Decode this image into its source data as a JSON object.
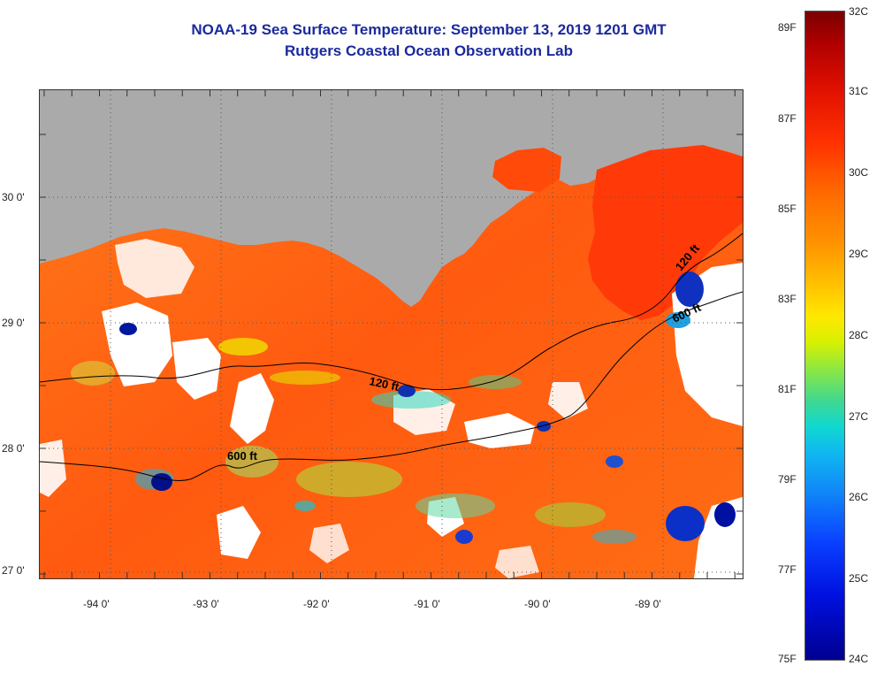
{
  "title": {
    "line1": "NOAA-19 Sea Surface Temperature:  September 13, 2019 1201 GMT",
    "line2": "Rutgers Coastal Ocean Observation Lab"
  },
  "axes": {
    "y_labels": [
      "30 0'",
      "29 0'",
      "28 0'",
      "27 0'"
    ],
    "x_labels": [
      "-94 0'",
      "-93 0'",
      "-92 0'",
      "-91 0'",
      "-90 0'",
      "-89 0'"
    ]
  },
  "contours": {
    "label_120_west": "120 ft",
    "label_600_west": "600 ft",
    "label_120_east": "120 ft",
    "label_600_east": "600 ft"
  },
  "colorbar": {
    "fahrenheit": [
      "89F",
      "87F",
      "85F",
      "83F",
      "81F",
      "79F",
      "77F",
      "75F"
    ],
    "celsius": [
      "32C",
      "31C",
      "30C",
      "29C",
      "28C",
      "27C",
      "26C",
      "25C",
      "24C"
    ]
  },
  "colors": {
    "land": "#aaaaaa",
    "warm_water": "#ff6a10",
    "cloud": "#ffffff",
    "title": "#1a2a9c"
  }
}
